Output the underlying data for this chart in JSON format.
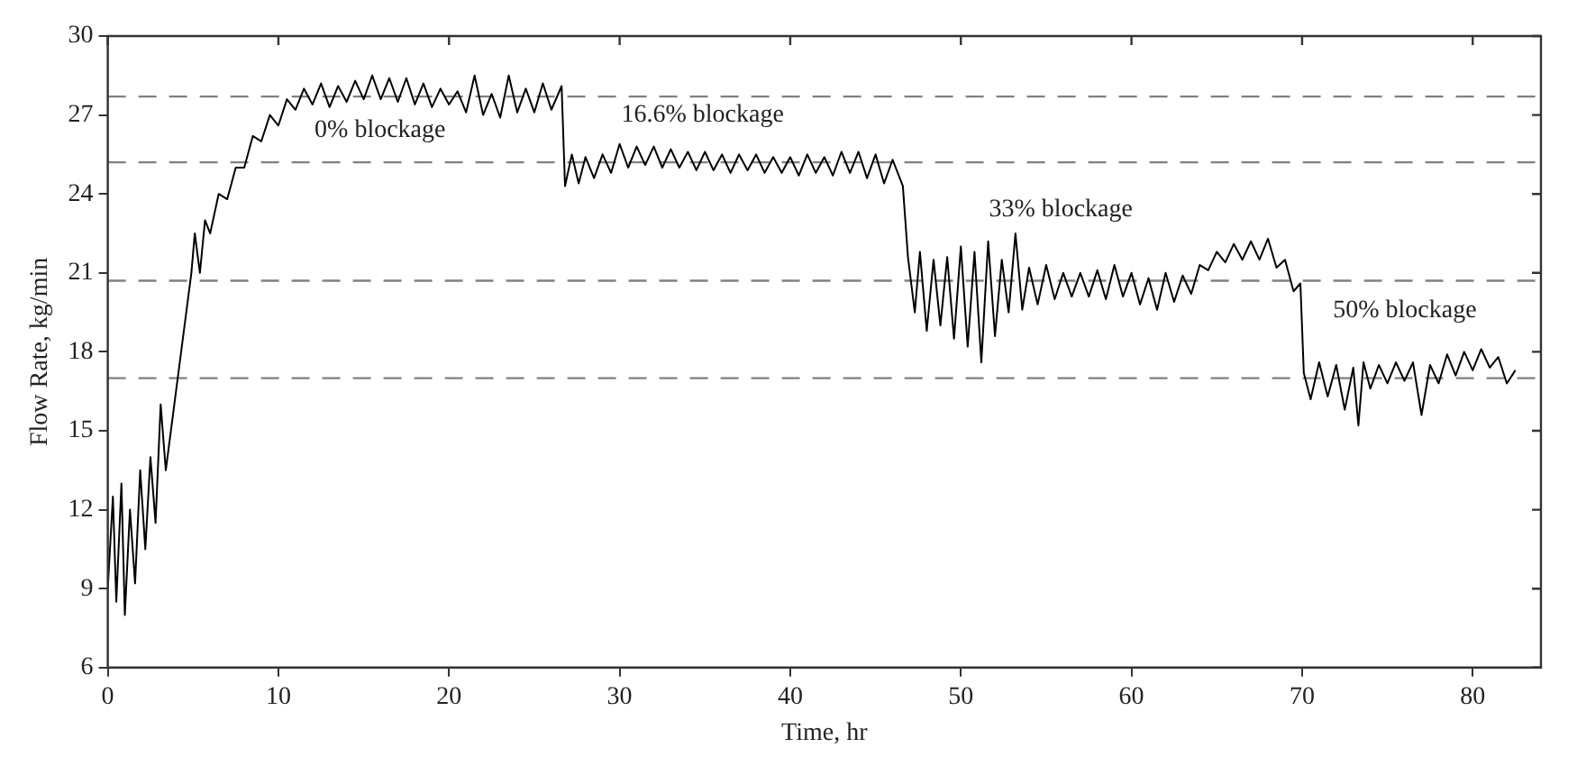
{
  "chart_data": {
    "type": "line",
    "xlabel": "Time, hr",
    "ylabel": "Flow Rate, kg/min",
    "xlim": [
      0,
      84
    ],
    "xticks": [
      0,
      10,
      20,
      30,
      40,
      50,
      60,
      70,
      80
    ],
    "ylim": [
      6,
      30
    ],
    "yticks": [
      6,
      9,
      12,
      15,
      18,
      21,
      24,
      27,
      30
    ],
    "grid": false,
    "legend": false,
    "marker": "none",
    "line_style": "solid",
    "ref_lines": [
      {
        "axis": "y",
        "value": 27.7,
        "color": "#808080",
        "line_style": "dashed"
      },
      {
        "axis": "y",
        "value": 25.2,
        "color": "#808080",
        "line_style": "dashed"
      },
      {
        "axis": "y",
        "value": 20.7,
        "color": "#808080",
        "line_style": "dashed"
      },
      {
        "axis": "y",
        "value": 17.0,
        "color": "#808080",
        "line_style": "dashed"
      }
    ],
    "annotations": [
      "0% blockage",
      "16.6% blockage",
      "33% blockage",
      "50% blockage"
    ],
    "series": [
      {
        "color": "#000000",
        "x": [
          0,
          0.3,
          0.5,
          0.8,
          1,
          1.3,
          1.6,
          1.9,
          2.2,
          2.5,
          2.8,
          3.1,
          3.4,
          3.7,
          4,
          4.3,
          4.6,
          4.9,
          5.1,
          5.4,
          5.7,
          6,
          6.5,
          7,
          7.5,
          8,
          8.5,
          9,
          9.5,
          10,
          10.5,
          11,
          11.5,
          12,
          12.5,
          13,
          13.5,
          14,
          14.5,
          15,
          15.5,
          16,
          16.5,
          17,
          17.5,
          18,
          18.5,
          19,
          19.5,
          20,
          20.5,
          21,
          21.5,
          22,
          22.5,
          23,
          23.5,
          24,
          24.5,
          25,
          25.5,
          26,
          26.6,
          26.8,
          27.2,
          27.6,
          28,
          28.5,
          29,
          29.5,
          30,
          30.5,
          31,
          31.5,
          32,
          32.5,
          33,
          33.5,
          34,
          34.5,
          35,
          35.5,
          36,
          36.5,
          37,
          37.5,
          38,
          38.5,
          39,
          39.5,
          40,
          40.5,
          41,
          41.5,
          42,
          42.5,
          43,
          43.5,
          44,
          44.5,
          45,
          45.5,
          46,
          46.6,
          46.9,
          47.3,
          47.6,
          48,
          48.4,
          48.8,
          49.2,
          49.6,
          50,
          50.4,
          50.8,
          51.2,
          51.6,
          52,
          52.4,
          52.8,
          53.2,
          53.6,
          54,
          54.5,
          55,
          55.5,
          56,
          56.5,
          57,
          57.5,
          58,
          58.5,
          59,
          59.5,
          60,
          60.5,
          61,
          61.5,
          62,
          62.5,
          63,
          63.5,
          64,
          64.5,
          65,
          65.5,
          66,
          66.5,
          67,
          67.5,
          68,
          68.5,
          69,
          69.5,
          69.9,
          70.1,
          70.5,
          71,
          71.5,
          72,
          72.5,
          73,
          73.3,
          73.6,
          74,
          74.5,
          75,
          75.5,
          76,
          76.5,
          77,
          77.5,
          78,
          78.5,
          79,
          79.5,
          80,
          80.5,
          81,
          81.5,
          82,
          82.5
        ],
        "values": [
          9,
          12.5,
          8.5,
          13,
          8,
          12,
          9.2,
          13.5,
          10.5,
          14,
          11.5,
          16,
          13.5,
          15,
          16.5,
          18,
          19.5,
          21,
          22.5,
          21,
          23,
          22.5,
          24,
          23.8,
          25,
          25,
          26.2,
          26,
          27,
          26.6,
          27.6,
          27.2,
          28,
          27.4,
          28.2,
          27.3,
          28.1,
          27.5,
          28.3,
          27.6,
          28.5,
          27.6,
          28.4,
          27.5,
          28.4,
          27.4,
          28.2,
          27.3,
          28,
          27.4,
          27.9,
          27.1,
          28.5,
          27,
          27.8,
          26.9,
          28.5,
          27.1,
          28,
          27.1,
          28.2,
          27.2,
          28.1,
          24.3,
          25.5,
          24.4,
          25.4,
          24.6,
          25.5,
          24.8,
          25.9,
          25,
          25.8,
          25.1,
          25.8,
          25,
          25.7,
          25,
          25.6,
          24.9,
          25.6,
          24.9,
          25.5,
          24.8,
          25.5,
          24.9,
          25.5,
          24.8,
          25.4,
          24.8,
          25.4,
          24.7,
          25.5,
          24.8,
          25.4,
          24.7,
          25.6,
          24.8,
          25.6,
          24.6,
          25.5,
          24.4,
          25.3,
          24.3,
          21.6,
          19.5,
          21.8,
          18.8,
          21.5,
          19,
          21.6,
          18.5,
          22,
          18.2,
          21.8,
          17.6,
          22.2,
          18.6,
          21.5,
          19.5,
          22.5,
          19.6,
          21.2,
          19.8,
          21.3,
          20,
          21,
          20.1,
          21,
          20.1,
          21.1,
          20,
          21.3,
          20.1,
          21,
          19.8,
          20.8,
          19.6,
          21,
          19.9,
          20.9,
          20.2,
          21.3,
          21.1,
          21.8,
          21.4,
          22.1,
          21.5,
          22.2,
          21.5,
          22.3,
          21.2,
          21.5,
          20.3,
          20.6,
          17.2,
          16.2,
          17.6,
          16.3,
          17.5,
          15.8,
          17.4,
          15.2,
          17.6,
          16.6,
          17.5,
          16.8,
          17.6,
          16.9,
          17.6,
          15.6,
          17.5,
          16.8,
          17.9,
          17.1,
          18,
          17.3,
          18.1,
          17.4,
          17.8,
          16.8,
          17.3
        ]
      }
    ]
  }
}
